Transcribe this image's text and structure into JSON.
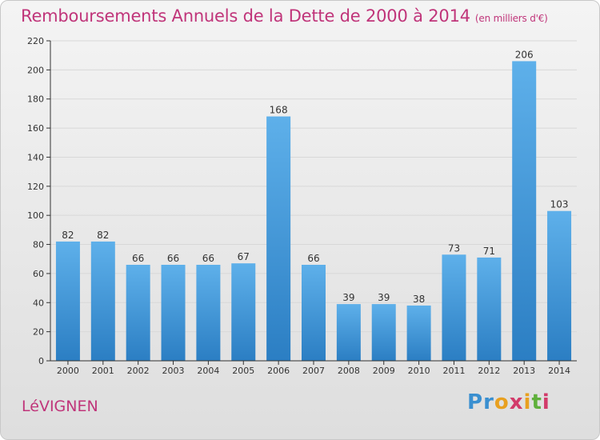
{
  "title": "Remboursements Annuels de la Dette de 2000 à 2014",
  "subtitle": "(en milliers d'€)",
  "commune": "LéVIGNEN",
  "logo": {
    "text": "Proxiti",
    "colors": [
      "#3a8fd0",
      "#e8a020",
      "#d23b6a",
      "#5fb03c"
    ]
  },
  "colors": {
    "bar_light": "#5eb0ea",
    "bar_dark": "#2b7ec3",
    "title": "#c0357a",
    "grid": "#d8d8d8",
    "axis": "#333333"
  },
  "chart_data": {
    "type": "bar",
    "categories": [
      "2000",
      "2001",
      "2002",
      "2003",
      "2004",
      "2005",
      "2006",
      "2007",
      "2008",
      "2009",
      "2010",
      "2011",
      "2012",
      "2013",
      "2014"
    ],
    "values": [
      82,
      82,
      66,
      66,
      66,
      67,
      168,
      66,
      39,
      39,
      38,
      73,
      71,
      206,
      103
    ],
    "ylim": [
      0,
      220
    ],
    "yticks": [
      0,
      20,
      40,
      60,
      80,
      100,
      120,
      140,
      160,
      180,
      200,
      220
    ],
    "grid": true,
    "data_labels": true
  }
}
